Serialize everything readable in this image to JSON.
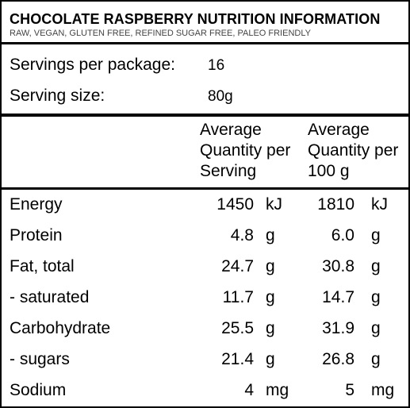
{
  "header": {
    "title": "CHOCOLATE RASPBERRY NUTRITION INFORMATION",
    "subtitle": "RAW, VEGAN, GLUTEN FREE, REFINED SUGAR FREE, PALEO FRIENDLY"
  },
  "servings": {
    "per_package_label": "Servings per package:",
    "per_package_value": "16",
    "size_label": "Serving size:",
    "size_value": "80g"
  },
  "columns": {
    "per_serving": [
      "Average",
      "Quantity per",
      "Serving"
    ],
    "per_100g": [
      "Average",
      "Quantity per",
      "100 g"
    ]
  },
  "rows": [
    {
      "label": "Energy",
      "serving": "1450",
      "serving_unit": "kJ",
      "per100": "1810",
      "per100_unit": "kJ"
    },
    {
      "label": "Protein",
      "serving": "4.8",
      "serving_unit": "g",
      "per100": "6.0",
      "per100_unit": "g"
    },
    {
      "label": "Fat, total",
      "serving": "24.7",
      "serving_unit": "g",
      "per100": "30.8",
      "per100_unit": "g"
    },
    {
      "label": "- saturated",
      "serving": "11.7",
      "serving_unit": "g",
      "per100": "14.7",
      "per100_unit": "g"
    },
    {
      "label": "Carbohydrate",
      "serving": "25.5",
      "serving_unit": "g",
      "per100": "31.9",
      "per100_unit": "g"
    },
    {
      "label": "- sugars",
      "serving": "21.4",
      "serving_unit": "g",
      "per100": "26.8",
      "per100_unit": "g"
    },
    {
      "label": "Sodium",
      "serving": "4",
      "serving_unit": "mg",
      "per100": "5",
      "per100_unit": "mg"
    }
  ]
}
